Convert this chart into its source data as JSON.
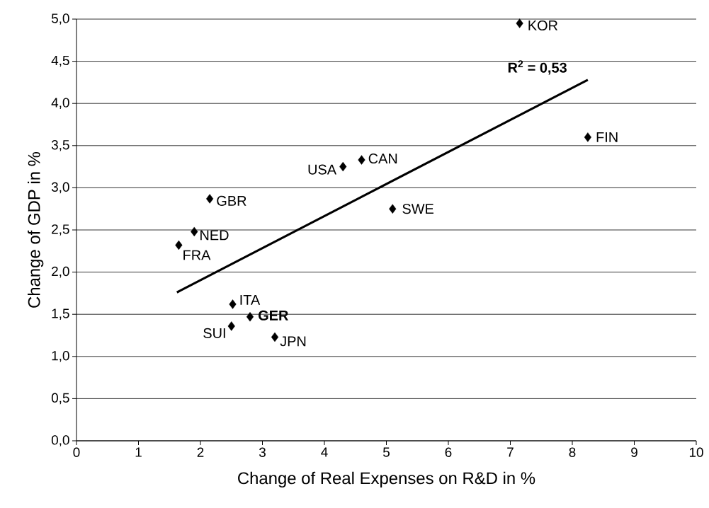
{
  "chart_data": {
    "type": "scatter",
    "xlabel": "Change of Real Expenses on R&D in %",
    "ylabel": "Change of GDP in %",
    "series": [
      {
        "color": "#000000",
        "marker": "diamond",
        "x": [
          7.15,
          8.25,
          4.6,
          4.3,
          5.1,
          2.15,
          1.9,
          1.65,
          2.52,
          2.8,
          2.5,
          3.2
        ],
        "values": [
          4.95,
          3.6,
          3.33,
          3.25,
          2.75,
          2.87,
          2.48,
          2.32,
          1.62,
          1.47,
          1.36,
          1.23
        ]
      },
      {
        "type": "line",
        "color": "#000000",
        "marker": "none",
        "x": [
          1.62,
          8.25
        ],
        "values": [
          1.76,
          4.28
        ]
      }
    ],
    "annotations": [
      {
        "text": "KOR",
        "x": 7.15,
        "y": 4.95
      },
      {
        "text": "FIN",
        "x": 8.25,
        "y": 3.6
      },
      {
        "text": "CAN",
        "x": 4.6,
        "y": 3.33
      },
      {
        "text": "USA",
        "x": 4.3,
        "y": 3.25
      },
      {
        "text": "SWE",
        "x": 5.1,
        "y": 2.75
      },
      {
        "text": "GBR",
        "x": 2.15,
        "y": 2.87
      },
      {
        "text": "NED",
        "x": 1.9,
        "y": 2.48
      },
      {
        "text": "FRA",
        "x": 1.65,
        "y": 2.32
      },
      {
        "text": "ITA",
        "x": 2.52,
        "y": 1.62
      },
      {
        "text": "**GER**",
        "x": 2.8,
        "y": 1.47
      },
      {
        "text": "SUI",
        "x": 2.5,
        "y": 1.36
      },
      {
        "text": "JPN",
        "x": 3.2,
        "y": 1.23
      },
      "**R$^{2}$ = 0,53**"
    ],
    "xlim": [
      0,
      10
    ],
    "xticks": [
      0,
      1,
      2,
      3,
      4,
      5,
      6,
      7,
      8,
      9,
      10
    ],
    "ylim": [
      0,
      5
    ],
    "yticks": [
      {
        "value": 0,
        "label": "0,0"
      },
      {
        "value": 0.5,
        "label": "0,5"
      },
      {
        "value": 1,
        "label": "1,0"
      },
      {
        "value": 1.5,
        "label": "1,5"
      },
      {
        "value": 2,
        "label": "2,0"
      },
      {
        "value": 2.5,
        "label": "2,5"
      },
      {
        "value": 3,
        "label": "3,0"
      },
      {
        "value": 3.5,
        "label": "3,5"
      },
      {
        "value": 4,
        "label": "4,0"
      },
      {
        "value": 4.5,
        "label": "4,5"
      },
      {
        "value": 5,
        "label": "5,0"
      }
    ],
    "grid": "y"
  }
}
